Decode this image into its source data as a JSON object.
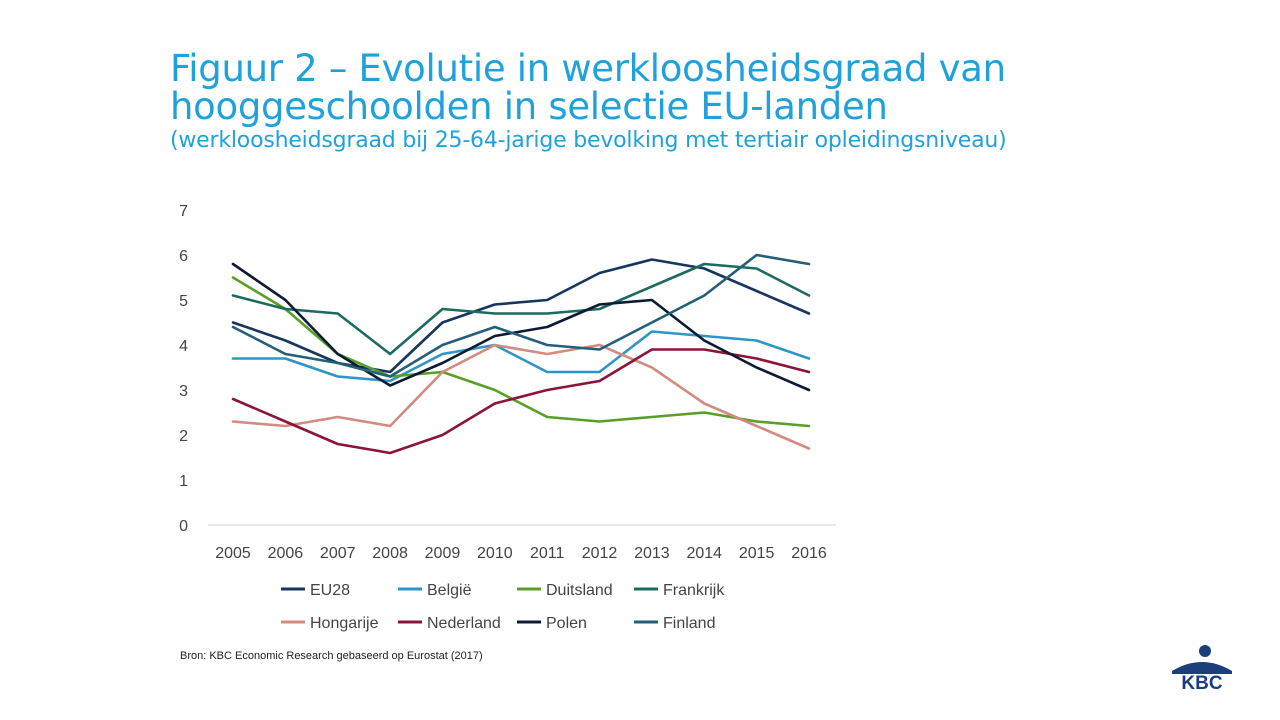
{
  "title_line1": "Figuur 2 – Evolutie in werkloosheidsgraad van",
  "title_line2": "hooggeschoolden in selectie EU-landen",
  "subtitle": "(werkloosheidsgraad bij 25-64-jarige bevolking met tertiair opleidingsniveau)",
  "source": "Bron: KBC Economic Research gebaseerd op Eurostat (2017)",
  "logo_text": "KBC",
  "colors": {
    "title": "#1fa2dc",
    "logo": "#1a3f7a",
    "axis": "#d0d0d0",
    "text": "#444444"
  },
  "chart_data": {
    "type": "line",
    "title": "",
    "xlabel": "",
    "ylabel": "",
    "ylim": [
      0,
      7
    ],
    "yticks": [
      0,
      1,
      2,
      3,
      4,
      5,
      6,
      7
    ],
    "grid": false,
    "legend_position": "bottom",
    "x": [
      "2005",
      "2006",
      "2007",
      "2008",
      "2009",
      "2010",
      "2011",
      "2012",
      "2013",
      "2014",
      "2015",
      "2016"
    ],
    "series": [
      {
        "name": "EU28",
        "color": "#17365d",
        "values": [
          4.5,
          4.1,
          3.6,
          3.4,
          4.5,
          4.9,
          5.0,
          5.6,
          5.9,
          5.7,
          5.2,
          4.7
        ]
      },
      {
        "name": "België",
        "color": "#2e95c7",
        "values": [
          3.7,
          3.7,
          3.3,
          3.2,
          3.8,
          4.0,
          3.4,
          3.4,
          4.3,
          4.2,
          4.1,
          3.7
        ]
      },
      {
        "name": "Duitsland",
        "color": "#5a9e2a",
        "values": [
          5.5,
          4.8,
          3.8,
          3.3,
          3.4,
          3.0,
          2.4,
          2.3,
          2.4,
          2.5,
          2.3,
          2.2
        ]
      },
      {
        "name": "Frankrijk",
        "color": "#1d6b5e",
        "values": [
          5.1,
          4.8,
          4.7,
          3.8,
          4.8,
          4.7,
          4.7,
          4.8,
          5.3,
          5.8,
          5.7,
          5.1
        ]
      },
      {
        "name": "Hongarije",
        "color": "#d38b7f",
        "values": [
          2.3,
          2.2,
          2.4,
          2.2,
          3.4,
          4.0,
          3.8,
          4.0,
          3.5,
          2.7,
          2.2,
          1.7
        ]
      },
      {
        "name": "Nederland",
        "color": "#8b1538",
        "values": [
          2.8,
          2.3,
          1.8,
          1.6,
          2.0,
          2.7,
          3.0,
          3.2,
          3.9,
          3.9,
          3.7,
          3.4
        ]
      },
      {
        "name": "Polen",
        "color": "#0d1a33",
        "values": [
          5.8,
          5.0,
          3.8,
          3.1,
          3.6,
          4.2,
          4.4,
          4.9,
          5.0,
          4.1,
          3.5,
          3.0
        ]
      },
      {
        "name": "Finland",
        "color": "#235f78",
        "values": [
          4.4,
          3.8,
          3.6,
          3.3,
          4.0,
          4.4,
          4.0,
          3.9,
          4.5,
          5.1,
          6.0,
          5.8
        ]
      }
    ]
  }
}
